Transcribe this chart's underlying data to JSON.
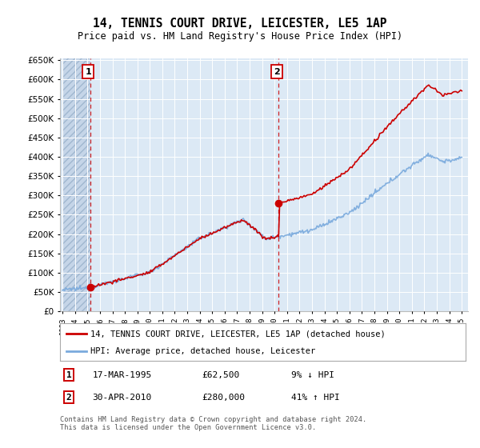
{
  "title": "14, TENNIS COURT DRIVE, LEICESTER, LE5 1AP",
  "subtitle": "Price paid vs. HM Land Registry's House Price Index (HPI)",
  "legend_line1": "14, TENNIS COURT DRIVE, LEICESTER, LE5 1AP (detached house)",
  "legend_line2": "HPI: Average price, detached house, Leicester",
  "annotation1_date": "17-MAR-1995",
  "annotation1_price": "£62,500",
  "annotation1_hpi": "9% ↓ HPI",
  "annotation2_date": "30-APR-2010",
  "annotation2_price": "£280,000",
  "annotation2_hpi": "41% ↑ HPI",
  "footnote": "Contains HM Land Registry data © Crown copyright and database right 2024.\nThis data is licensed under the Open Government Licence v3.0.",
  "price_color": "#cc0000",
  "hpi_color": "#7aaadd",
  "background_plot": "#dce9f5",
  "background_hatch": "#c5d5e8",
  "ylim_min": 0,
  "ylim_max": 650000,
  "yticks": [
    0,
    50000,
    100000,
    150000,
    200000,
    250000,
    300000,
    350000,
    400000,
    450000,
    500000,
    550000,
    600000,
    650000
  ],
  "sale1_x": 1995.21,
  "sale1_y": 62500,
  "sale2_x": 2010.33,
  "sale2_y": 280000,
  "xmin": 1993,
  "xmax": 2025
}
